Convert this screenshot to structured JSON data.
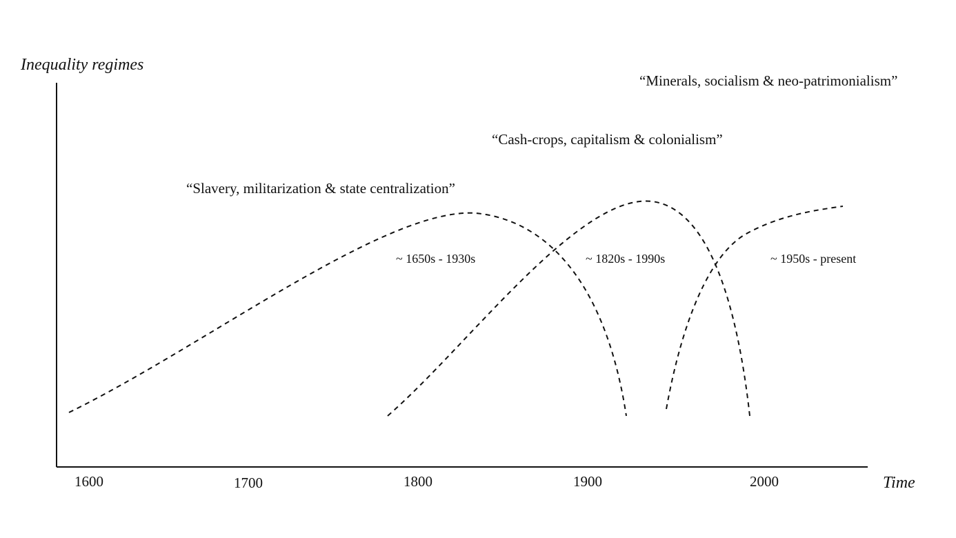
{
  "axes": {
    "y_title": "Inequality regimes",
    "x_title": "Time"
  },
  "x_ticks": [
    "1600",
    "1700",
    "1800",
    "1900",
    "2000"
  ],
  "regimes": [
    {
      "title": "“Slavery, militarization & state centralization”",
      "period": "~ 1650s - 1930s"
    },
    {
      "title": "“Cash-crops, capitalism & colonialism”",
      "period": "~ 1820s - 1990s"
    },
    {
      "title": "“Minerals, socialism & neo-patrimonialism”",
      "period": "~ 1950s - present"
    }
  ],
  "colors": {
    "ink": "#111111",
    "background": "#ffffff"
  }
}
